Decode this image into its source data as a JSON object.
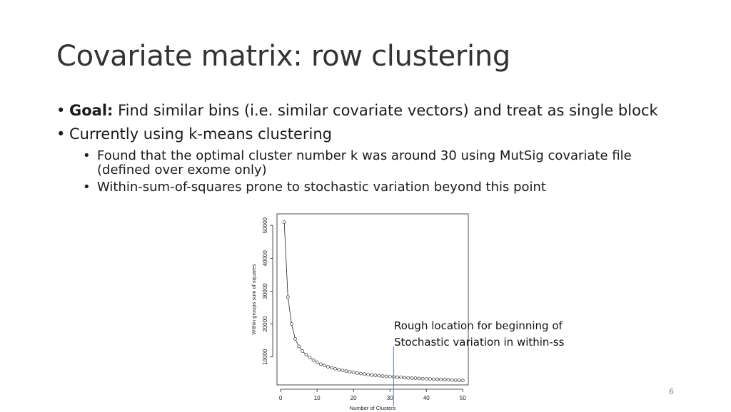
{
  "slide": {
    "title": "Covariate matrix: row clustering",
    "bullets": [
      {
        "bold": "Goal:",
        "text": " Find similar bins (i.e. similar covariate vectors) and treat as single block"
      },
      {
        "text": "Currently using k-means clustering"
      }
    ],
    "sub_bullets": [
      {
        "text": "Found that the optimal cluster number k was around 30 using MutSig covariate file (defined over exome only)"
      },
      {
        "text": "Within-sum-of-squares prone to stochastic variation beyond this point"
      }
    ],
    "annotation": {
      "line1": "Rough location for beginning of",
      "line2": "Stochastic variation in within-ss"
    },
    "slide_number": "6"
  },
  "colors": {
    "marker_line": "#5b7fc0",
    "points": "#333333"
  },
  "chart_data": {
    "type": "line",
    "xlabel": "Number of Clusters",
    "ylabel": "Within groups sum of squares",
    "xlim": [
      0,
      50
    ],
    "ylim": [
      3000,
      52000
    ],
    "x_ticks": [
      "0",
      "10",
      "20",
      "30",
      "40",
      "50"
    ],
    "y_ticks": [
      "10000",
      "20000",
      "30000",
      "40000",
      "50000"
    ],
    "marker_x": 31,
    "x": [
      1,
      2,
      3,
      4,
      5,
      6,
      7,
      8,
      9,
      10,
      11,
      12,
      13,
      14,
      15,
      16,
      17,
      18,
      19,
      20,
      21,
      22,
      23,
      24,
      25,
      26,
      27,
      28,
      29,
      30,
      31,
      32,
      33,
      34,
      35,
      36,
      37,
      38,
      39,
      40,
      41,
      42,
      43,
      44,
      45,
      46,
      47,
      48,
      49,
      50
    ],
    "y": [
      51000,
      28200,
      20000,
      15500,
      13200,
      11800,
      10700,
      9800,
      9000,
      8400,
      7800,
      7400,
      7000,
      6700,
      6400,
      6100,
      5900,
      5700,
      5500,
      5300,
      5100,
      4950,
      4800,
      4650,
      4500,
      4400,
      4300,
      4200,
      4100,
      4000,
      3950,
      3850,
      3800,
      3700,
      3650,
      3600,
      3550,
      3450,
      3400,
      3350,
      3300,
      3250,
      3200,
      3150,
      3100,
      3050,
      3000,
      2950,
      2900,
      2850
    ]
  }
}
